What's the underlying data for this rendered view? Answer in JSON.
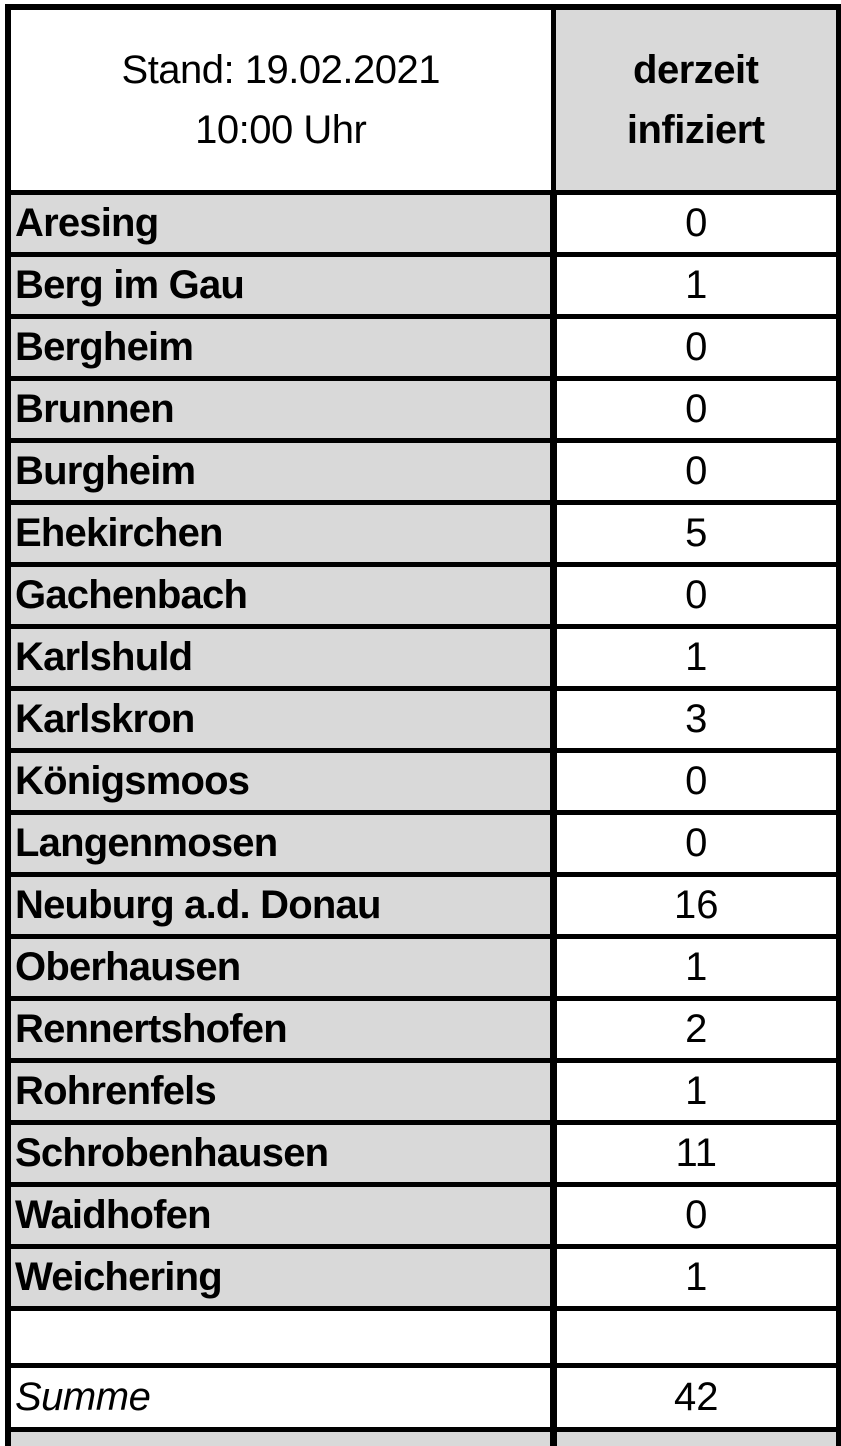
{
  "table": {
    "header": {
      "stand_line1": "Stand: 19.02.2021",
      "stand_line2": "10:00 Uhr",
      "col_line1": "derzeit",
      "col_line2": "infiziert"
    },
    "rows": [
      {
        "name": "Aresing",
        "value": "0"
      },
      {
        "name": "Berg im Gau",
        "value": "1"
      },
      {
        "name": "Bergheim",
        "value": "0"
      },
      {
        "name": "Brunnen",
        "value": "0"
      },
      {
        "name": "Burgheim",
        "value": "0"
      },
      {
        "name": "Ehekirchen",
        "value": "5"
      },
      {
        "name": "Gachenbach",
        "value": "0"
      },
      {
        "name": "Karlshuld",
        "value": "1"
      },
      {
        "name": "Karlskron",
        "value": "3"
      },
      {
        "name": "Königsmoos",
        "value": "0"
      },
      {
        "name": "Langenmosen",
        "value": "0"
      },
      {
        "name": "Neuburg a.d. Donau",
        "value": "16"
      },
      {
        "name": "Oberhausen",
        "value": "1"
      },
      {
        "name": "Rennertshofen",
        "value": "2"
      },
      {
        "name": "Rohrenfels",
        "value": "1"
      },
      {
        "name": "Schrobenhausen",
        "value": "11"
      },
      {
        "name": "Waidhofen",
        "value": "0"
      },
      {
        "name": "Weichering",
        "value": "1"
      }
    ],
    "summary": {
      "label": "Summe",
      "value": "42"
    },
    "colors": {
      "label_bg": "#d9d9d9",
      "cell_bg": "#ffffff",
      "border": "#000000"
    }
  }
}
